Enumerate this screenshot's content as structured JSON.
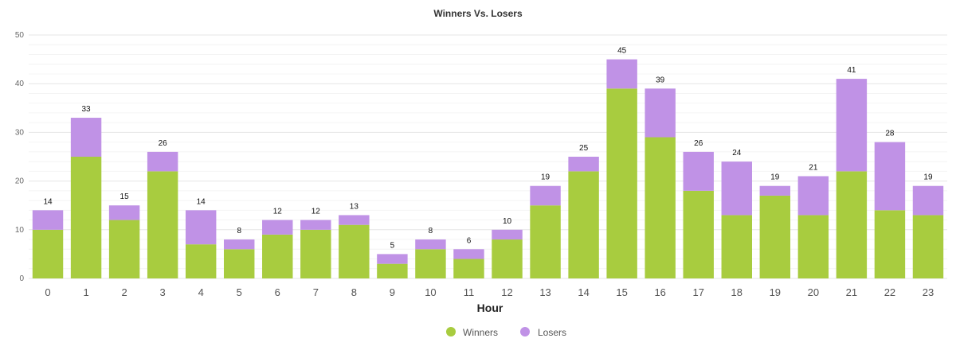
{
  "chart_data": {
    "type": "bar",
    "stacked": true,
    "title": "Winners Vs. Losers",
    "xlabel": "Hour",
    "ylabel": "",
    "ylim": [
      0,
      50
    ],
    "yticks": [
      0,
      10,
      20,
      30,
      40,
      50
    ],
    "grid": true,
    "legend": "bottom-center",
    "categories": [
      "0",
      "1",
      "2",
      "3",
      "4",
      "5",
      "6",
      "7",
      "8",
      "9",
      "10",
      "11",
      "12",
      "13",
      "14",
      "15",
      "16",
      "17",
      "18",
      "19",
      "20",
      "21",
      "22",
      "23"
    ],
    "series": [
      {
        "name": "Winners",
        "color": "#a8cc3f",
        "values": [
          10,
          25,
          12,
          22,
          7,
          6,
          9,
          10,
          11,
          3,
          6,
          4,
          8,
          15,
          22,
          39,
          29,
          18,
          13,
          17,
          13,
          22,
          14,
          13
        ]
      },
      {
        "name": "Losers",
        "color": "#c092e6",
        "values": [
          4,
          8,
          3,
          4,
          7,
          2,
          3,
          2,
          2,
          2,
          2,
          2,
          2,
          4,
          3,
          6,
          10,
          8,
          11,
          2,
          8,
          19,
          14,
          6
        ]
      }
    ],
    "totals": [
      14,
      33,
      15,
      26,
      14,
      8,
      12,
      12,
      13,
      5,
      8,
      6,
      10,
      19,
      25,
      45,
      39,
      26,
      24,
      19,
      21,
      41,
      28,
      19
    ]
  }
}
